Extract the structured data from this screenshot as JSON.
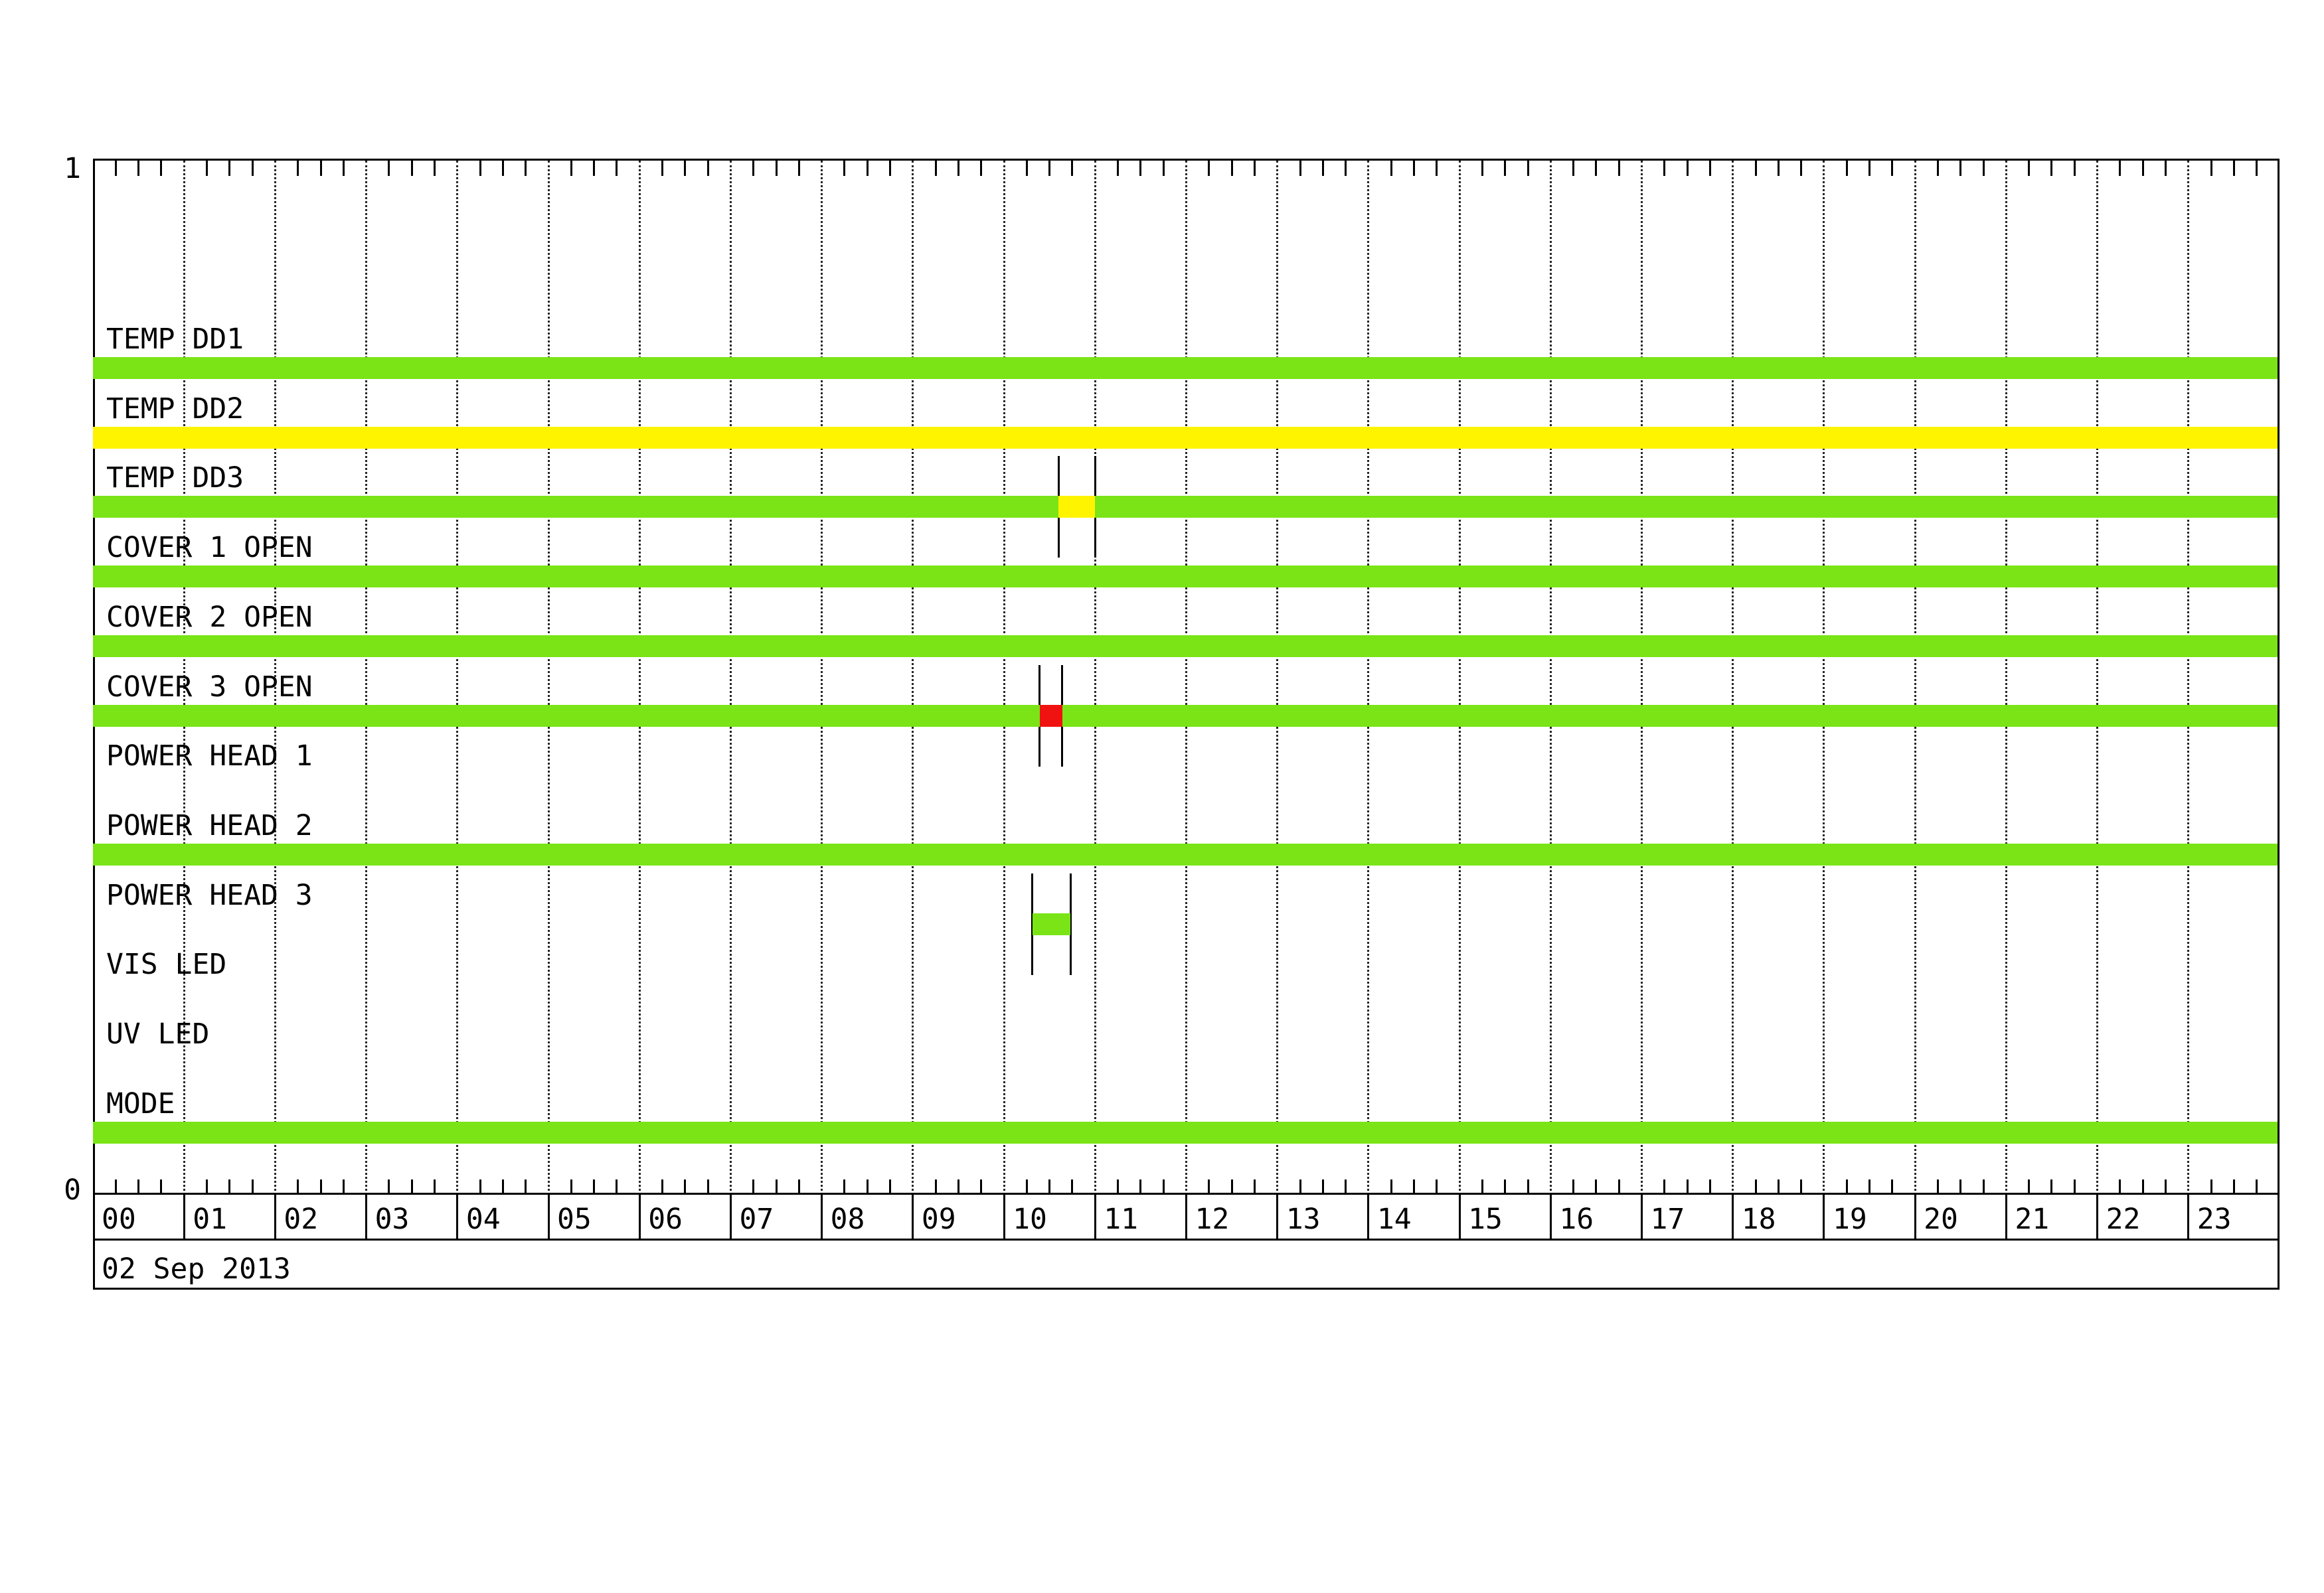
{
  "chart_data": {
    "type": "timeline-status",
    "date_label": "02 Sep 2013",
    "y_axis": {
      "top": "1",
      "bottom": "0"
    },
    "x_hours": [
      "00",
      "01",
      "02",
      "03",
      "04",
      "05",
      "06",
      "07",
      "08",
      "09",
      "10",
      "11",
      "12",
      "13",
      "14",
      "15",
      "16",
      "17",
      "18",
      "19",
      "20",
      "21",
      "22",
      "23"
    ],
    "x_range_hours": [
      0,
      24
    ],
    "minor_tick_minutes": 15,
    "grid": "hourly-dotted",
    "colors": {
      "ok": "#7AE416",
      "warn": "#FFF400",
      "alert": "#F01111"
    },
    "rows": [
      {
        "label": "TEMP DD1",
        "segments": [
          {
            "start": 0,
            "end": 24,
            "state": "ok"
          }
        ]
      },
      {
        "label": "TEMP DD2",
        "segments": [
          {
            "start": 0,
            "end": 24,
            "state": "warn"
          }
        ]
      },
      {
        "label": "TEMP DD3",
        "segments": [
          {
            "start": 0,
            "end": 24,
            "state": "ok"
          },
          {
            "start": 10.6,
            "end": 11.0,
            "state": "warn",
            "marked": true
          }
        ]
      },
      {
        "label": "COVER 1 OPEN",
        "segments": [
          {
            "start": 0,
            "end": 24,
            "state": "ok"
          }
        ]
      },
      {
        "label": "COVER 2 OPEN",
        "segments": [
          {
            "start": 0,
            "end": 24,
            "state": "ok"
          }
        ]
      },
      {
        "label": "COVER 3 OPEN",
        "segments": [
          {
            "start": 0,
            "end": 24,
            "state": "ok"
          },
          {
            "start": 10.39,
            "end": 10.64,
            "state": "alert",
            "marked": true
          }
        ]
      },
      {
        "label": "POWER HEAD 1",
        "segments": []
      },
      {
        "label": "POWER HEAD 2",
        "segments": [
          {
            "start": 0,
            "end": 24,
            "state": "ok"
          }
        ]
      },
      {
        "label": "POWER HEAD 3",
        "segments": [
          {
            "start": 10.31,
            "end": 10.73,
            "state": "ok",
            "marked": true
          }
        ]
      },
      {
        "label": "VIS LED",
        "segments": []
      },
      {
        "label": "UV LED",
        "segments": []
      },
      {
        "label": "MODE",
        "segments": [
          {
            "start": 0,
            "end": 24,
            "state": "ok"
          }
        ]
      }
    ]
  }
}
